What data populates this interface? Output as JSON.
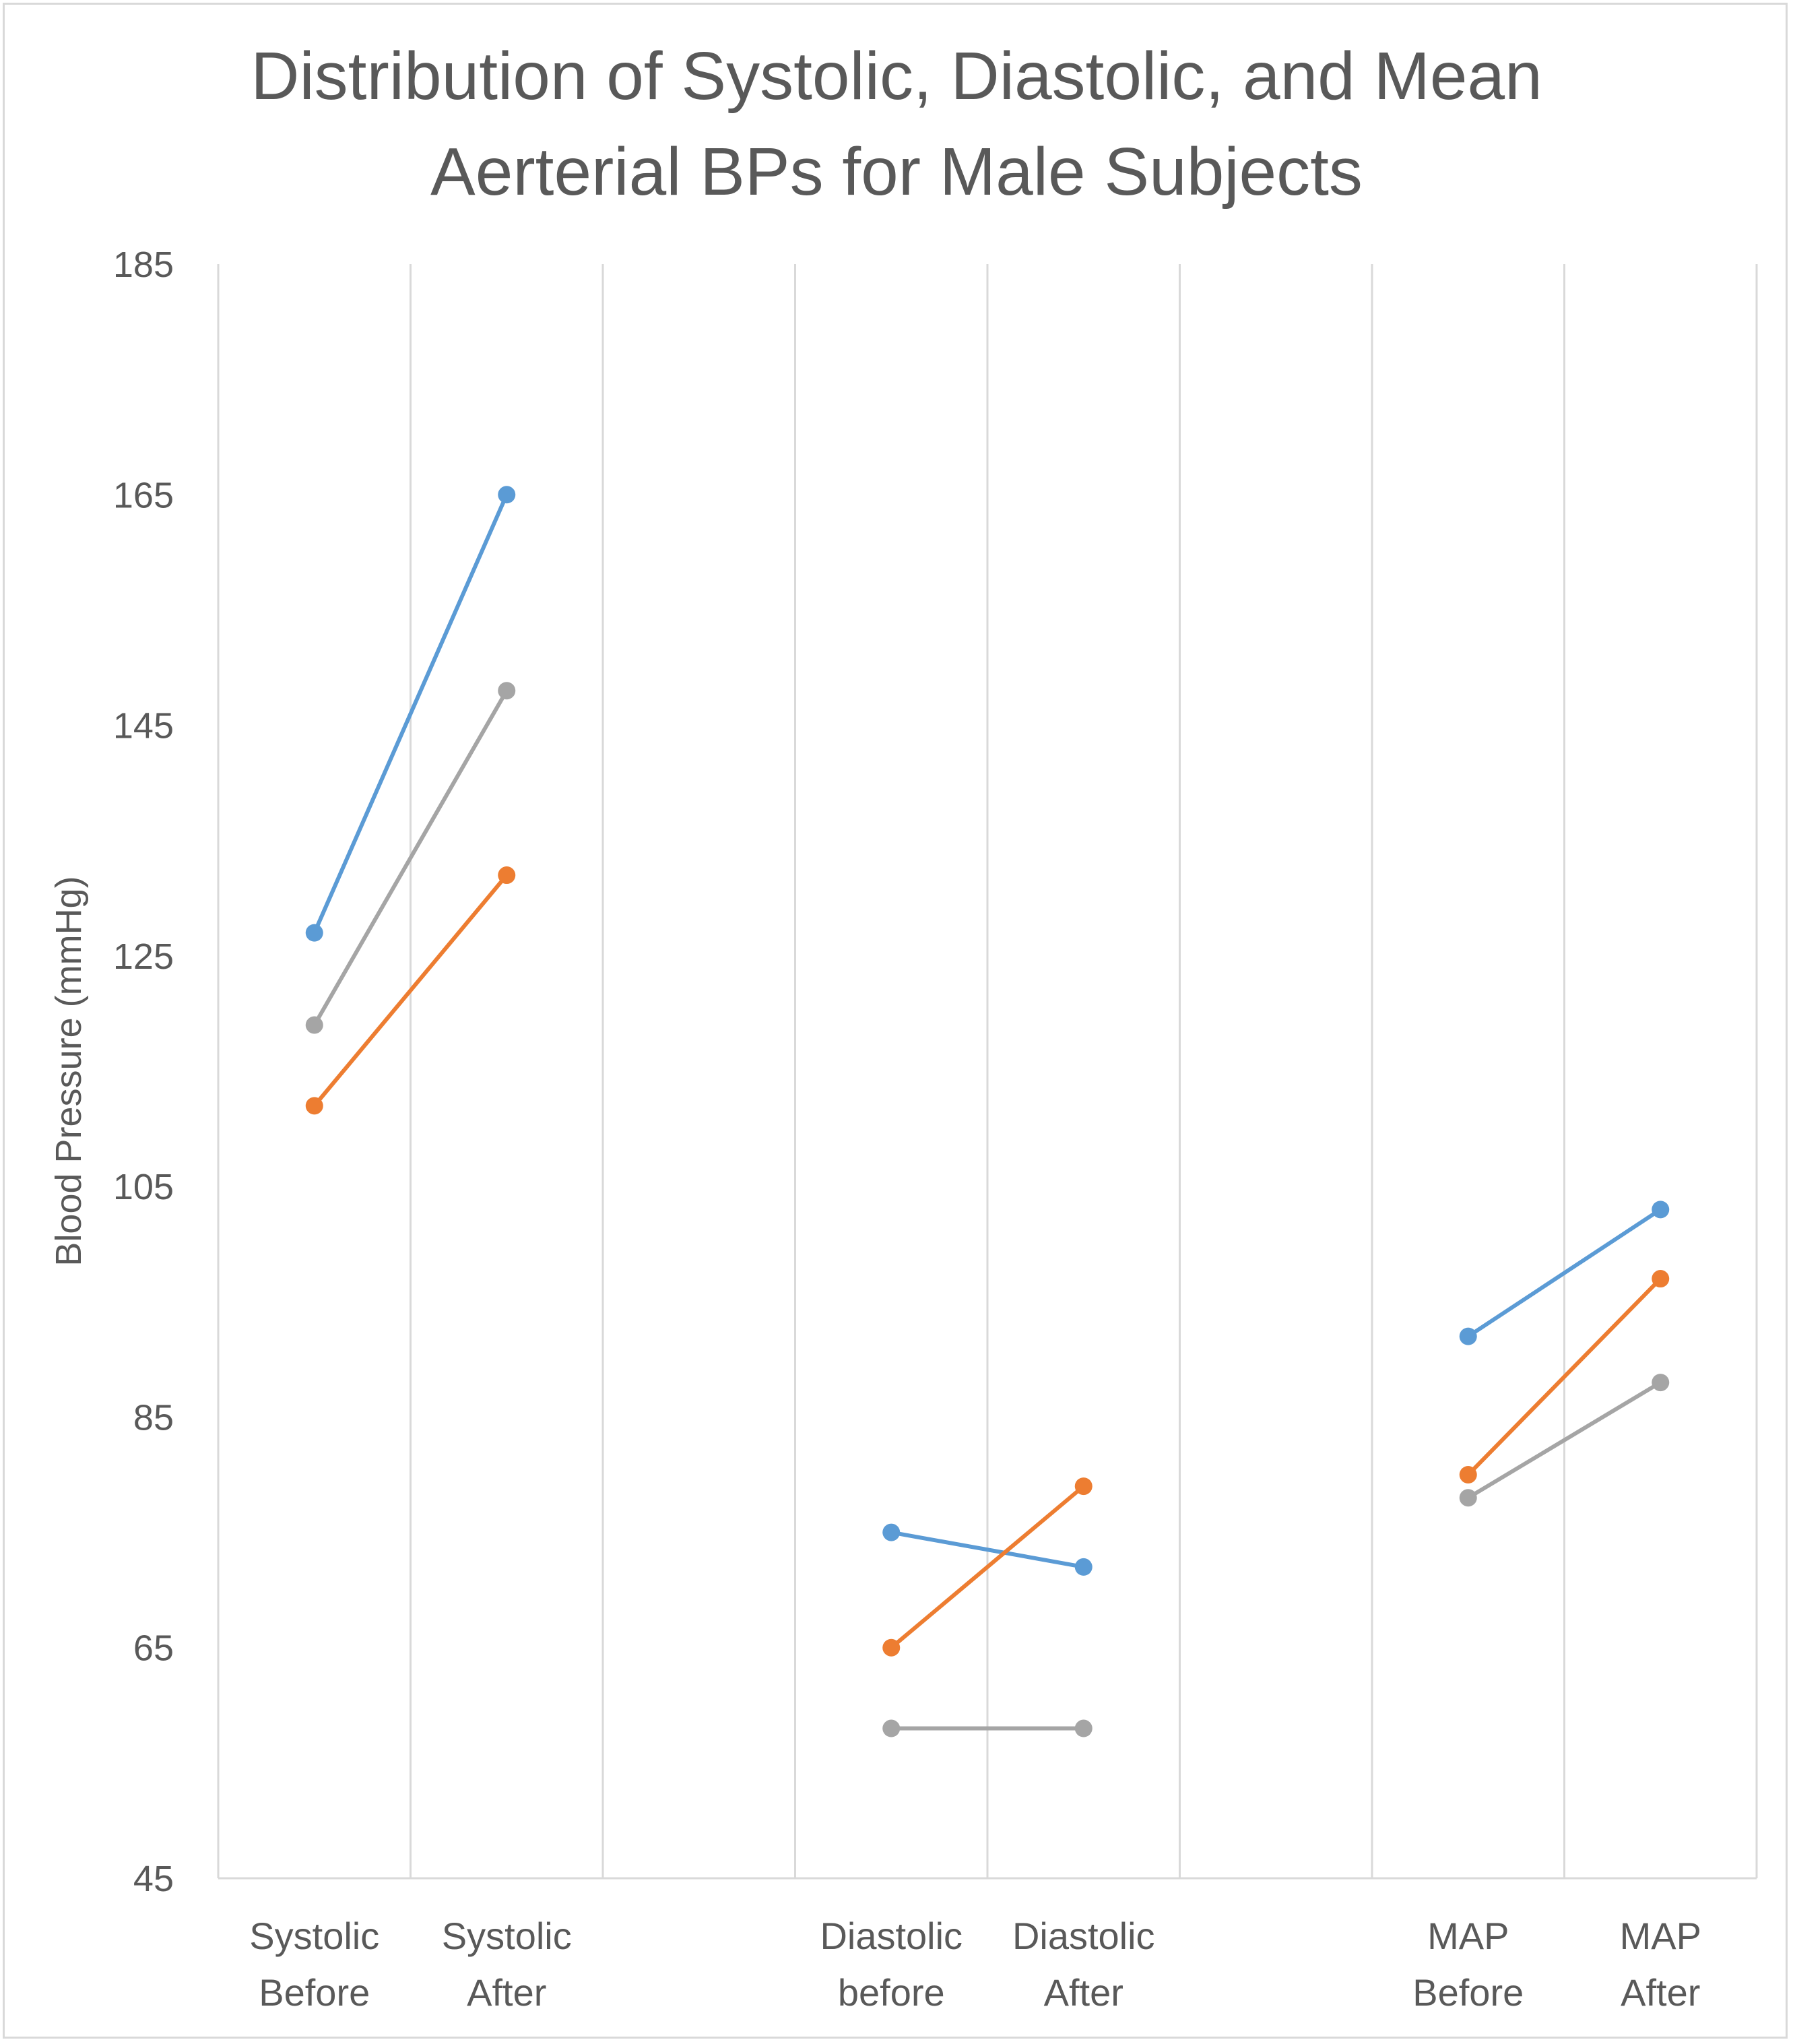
{
  "chart_data": {
    "type": "line",
    "title_lines": [
      "Distribution of Systolic, Diastolic, and Mean",
      "Aerterial BPs for Male Subjects"
    ],
    "ylabel": "Blood Pressure (mmHg)",
    "ylim": [
      45,
      185
    ],
    "yticks": [
      45,
      65,
      85,
      105,
      125,
      145,
      165,
      185
    ],
    "grid": "vertical",
    "legend": "none",
    "categories": [
      {
        "label": [
          "Systolic",
          "Before"
        ],
        "slot": 0
      },
      {
        "label": [
          "Systolic",
          "After"
        ],
        "slot": 1
      },
      {
        "label": [
          "Diastolic",
          "before"
        ],
        "slot": 3
      },
      {
        "label": [
          "Diastolic",
          "After"
        ],
        "slot": 4
      },
      {
        "label": [
          "MAP",
          "Before"
        ],
        "slot": 6
      },
      {
        "label": [
          "MAP",
          "After"
        ],
        "slot": 7
      }
    ],
    "slots": 8,
    "series": [
      {
        "color": "#5b9bd5",
        "values": [
          127,
          165,
          75,
          72,
          92,
          103
        ]
      },
      {
        "color": "#ed7d31",
        "values": [
          112,
          132,
          65,
          79,
          80,
          97
        ]
      },
      {
        "color": "#a5a5a5",
        "values": [
          119,
          148,
          58,
          58,
          78,
          88
        ]
      }
    ]
  }
}
